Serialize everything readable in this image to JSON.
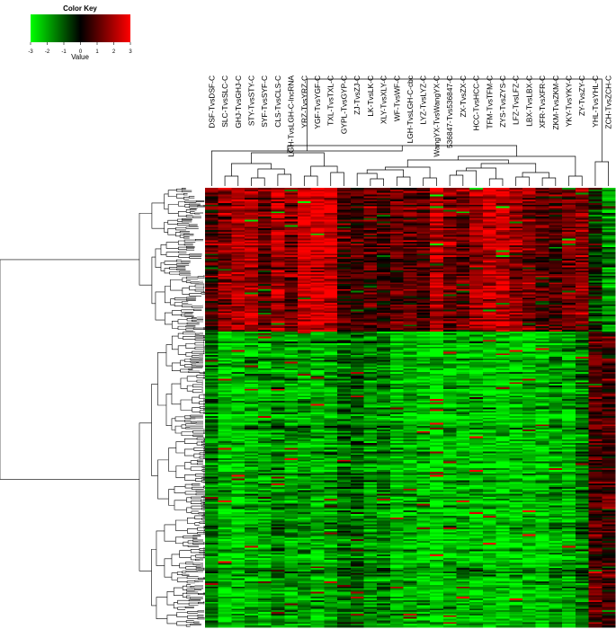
{
  "chart_data": {
    "type": "heatmap",
    "color_key": {
      "title": "Color Key",
      "axis_label": "Value",
      "ticks": [
        -3,
        -2,
        -1,
        0,
        1,
        2,
        3
      ],
      "low_color": "#00ff00",
      "mid_color": "#000000",
      "high_color": "#ff0000"
    },
    "columns": [
      "DSF-TvsDSF-C",
      "SLC-TvsSLC-C",
      "GHJ-TvsGHJ-C",
      "STY-TvsSTY-C",
      "SYF-TvsSYF-C",
      "CLS-TvsCLS-C",
      "LGH-TvsLGH-C-lncRNA",
      "YRZ-TvsYRZ-C",
      "YGF-TvsYGF-C",
      "TXL-TvsTXL-C",
      "GYPL-TvsGYP-C",
      "ZJ-TvsZJ-C",
      "LK-TvsLK-C",
      "XLY-TvsXLY-C",
      "WF-TvsWF-C",
      "LGH-TvsLGH-C-cbc",
      "LYZ-TvsLYZ-C",
      "WangYX-TvsWangYX-C",
      "536847-Tvs536847-C",
      "ZX-TvsZX-C",
      "HCC-TvsHCC-C",
      "TFM-TvsTFM-C",
      "ZYS-TvsZYS-C",
      "LFZ-TvsLFZ-C",
      "LBX-TvsLBX-C",
      "XFR-TvsXFR-C",
      "ZKM-TvsZKM-C",
      "YKY-TvsYKY-C",
      "ZY-TvsZY-C",
      "YHL-TvsYHL-C",
      "ZCH-TvsZCH-C"
    ],
    "row_clusters": [
      {
        "name": "upper",
        "rows": 85,
        "mean_by_column": [
          0.8,
          1.6,
          2.2,
          2.0,
          1.2,
          2.1,
          1.5,
          2.6,
          2.7,
          2.5,
          0.8,
          0.6,
          1.0,
          0.7,
          1.2,
          1.2,
          0.9,
          2.2,
          1.4,
          1.3,
          1.8,
          2.4,
          2.4,
          1.6,
          1.4,
          1.0,
          0.9,
          1.4,
          1.5,
          -0.4,
          -1.5
        ]
      },
      {
        "name": "lower",
        "rows": 175,
        "mean_by_column": [
          -1.3,
          -2.2,
          -2.3,
          -2.0,
          -1.9,
          -1.5,
          -1.9,
          -1.7,
          -2.0,
          -1.8,
          -1.2,
          -1.1,
          -1.6,
          -1.4,
          -2.1,
          -2.0,
          -2.2,
          -2.5,
          -2.0,
          -2.0,
          -2.1,
          -2.2,
          -2.4,
          -2.3,
          -2.2,
          -2.3,
          -1.8,
          -2.0,
          -1.3,
          1.0,
          0.9
        ]
      }
    ],
    "dendrograms": {
      "row": true,
      "column": true
    },
    "legend_placement": "top-left"
  }
}
